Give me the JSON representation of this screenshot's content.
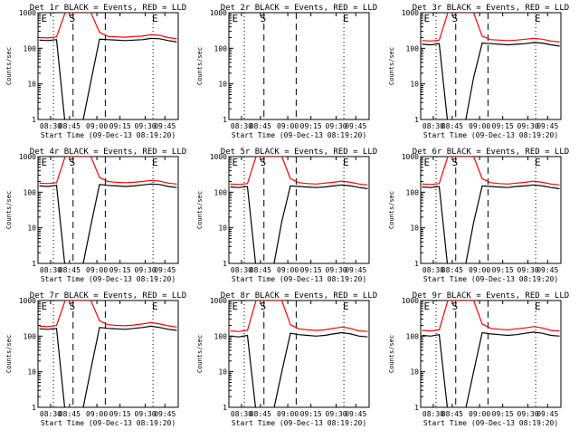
{
  "chart_data": [
    {
      "type": "line",
      "title": "Det 1r BLACK = Events, RED = LLD",
      "xlabel": "Start Time (09-Dec-13 08:19:20)",
      "ylabel": "Counts/sec",
      "yscale": "log",
      "ylim": [
        1,
        1000
      ],
      "x_tick_labels": [
        "08:30",
        "08:45",
        "09:00",
        "09:15",
        "09:30",
        "09:45"
      ],
      "y_tick_labels": [
        "1",
        "10",
        "100",
        "1000"
      ],
      "markers": [
        "E",
        "S",
        "E"
      ],
      "has_data": true,
      "series": [
        {
          "color": "#000000",
          "values": [
            170,
            165,
            175,
            0,
            0,
            0,
            12,
            180,
            175,
            170,
            165,
            170,
            175,
            190,
            185,
            165,
            150
          ]
        },
        {
          "color": "#ff0000",
          "values": [
            200,
            195,
            210,
            1000,
            1000,
            1000,
            1000,
            280,
            215,
            210,
            205,
            215,
            220,
            240,
            230,
            200,
            185
          ]
        }
      ]
    },
    {
      "type": "line",
      "title": "Det 2r BLACK = Events, RED = LLD",
      "xlabel": "Start Time (09-Dec-13 08:19:20)",
      "ylabel": "Counts/sec",
      "yscale": "log",
      "ylim": [
        1,
        1000
      ],
      "x_tick_labels": [
        "08:30",
        "08:45",
        "09:00",
        "09:15",
        "09:30",
        "09:45"
      ],
      "y_tick_labels": [
        "1",
        "10",
        "100",
        "1000"
      ],
      "markers": [
        "E",
        "S",
        "E"
      ],
      "has_data": false,
      "series": []
    },
    {
      "type": "line",
      "title": "Det 3r BLACK = Events, RED = LLD",
      "xlabel": "Start Time (09-Dec-13 08:19:20)",
      "ylabel": "Counts/sec",
      "yscale": "log",
      "ylim": [
        1,
        1000
      ],
      "x_tick_labels": [
        "08:30",
        "08:45",
        "09:00",
        "09:15",
        "09:30",
        "09:45"
      ],
      "y_tick_labels": [
        "1",
        "10",
        "100",
        "1000"
      ],
      "markers": [
        "E",
        "S",
        "E"
      ],
      "has_data": true,
      "series": [
        {
          "color": "#000000",
          "values": [
            130,
            125,
            135,
            0,
            0,
            0,
            15,
            140,
            135,
            130,
            125,
            130,
            135,
            145,
            140,
            125,
            115
          ]
        },
        {
          "color": "#ff0000",
          "values": [
            165,
            160,
            170,
            1000,
            1000,
            1000,
            1000,
            220,
            175,
            170,
            165,
            170,
            180,
            190,
            180,
            160,
            150
          ]
        }
      ]
    },
    {
      "type": "line",
      "title": "Det 4r BLACK = Events, RED = LLD",
      "xlabel": "Start Time (09-Dec-13 08:19:20)",
      "ylabel": "Counts/sec",
      "yscale": "log",
      "ylim": [
        1,
        1000
      ],
      "x_tick_labels": [
        "08:30",
        "08:45",
        "09:00",
        "09:15",
        "09:30",
        "09:45"
      ],
      "y_tick_labels": [
        "1",
        "10",
        "100",
        "1000"
      ],
      "markers": [
        "E",
        "S",
        "E"
      ],
      "has_data": true,
      "series": [
        {
          "color": "#000000",
          "values": [
            150,
            145,
            155,
            0,
            0,
            0,
            12,
            165,
            155,
            150,
            145,
            150,
            160,
            170,
            165,
            145,
            135
          ]
        },
        {
          "color": "#ff0000",
          "values": [
            180,
            175,
            185,
            1000,
            1000,
            1000,
            1000,
            260,
            200,
            190,
            185,
            190,
            200,
            215,
            205,
            180,
            170
          ]
        }
      ]
    },
    {
      "type": "line",
      "title": "Det 5r BLACK = Events, RED = LLD",
      "xlabel": "Start Time (09-Dec-13 08:19:20)",
      "ylabel": "Counts/sec",
      "yscale": "log",
      "ylim": [
        1,
        1000
      ],
      "x_tick_labels": [
        "08:30",
        "08:45",
        "09:00",
        "09:15",
        "09:30",
        "09:45"
      ],
      "y_tick_labels": [
        "1",
        "10",
        "100",
        "1000"
      ],
      "markers": [
        "E",
        "S",
        "E"
      ],
      "has_data": true,
      "series": [
        {
          "color": "#000000",
          "values": [
            140,
            135,
            145,
            0,
            0,
            0,
            15,
            150,
            145,
            140,
            135,
            140,
            150,
            160,
            150,
            135,
            125
          ]
        },
        {
          "color": "#ff0000",
          "values": [
            170,
            165,
            175,
            1000,
            1000,
            1000,
            1000,
            240,
            185,
            175,
            170,
            180,
            190,
            205,
            190,
            170,
            160
          ]
        }
      ]
    },
    {
      "type": "line",
      "title": "Det 6r BLACK = Events, RED = LLD",
      "xlabel": "Start Time (09-Dec-13 08:19:20)",
      "ylabel": "Counts/sec",
      "yscale": "log",
      "ylim": [
        1,
        1000
      ],
      "x_tick_labels": [
        "08:30",
        "08:45",
        "09:00",
        "09:15",
        "09:30",
        "09:45"
      ],
      "y_tick_labels": [
        "1",
        "10",
        "100",
        "1000"
      ],
      "markers": [
        "E",
        "S",
        "E"
      ],
      "has_data": true,
      "series": [
        {
          "color": "#000000",
          "values": [
            140,
            135,
            145,
            0,
            0,
            0,
            14,
            150,
            145,
            140,
            135,
            145,
            150,
            160,
            150,
            135,
            125
          ]
        },
        {
          "color": "#ff0000",
          "values": [
            170,
            165,
            175,
            1000,
            1000,
            1000,
            1000,
            240,
            185,
            175,
            170,
            180,
            190,
            205,
            190,
            170,
            160
          ]
        }
      ]
    },
    {
      "type": "line",
      "title": "Det 7r BLACK = Events, RED = LLD",
      "xlabel": "Start Time (09-Dec-13 08:19:20)",
      "ylabel": "Counts/sec",
      "yscale": "log",
      "ylim": [
        1,
        1000
      ],
      "x_tick_labels": [
        "08:30",
        "08:45",
        "09:00",
        "09:15",
        "09:30",
        "09:45"
      ],
      "y_tick_labels": [
        "1",
        "10",
        "100",
        "1000"
      ],
      "markers": [
        "E",
        "S",
        "E"
      ],
      "has_data": true,
      "series": [
        {
          "color": "#000000",
          "values": [
            160,
            155,
            165,
            0,
            0,
            0,
            12,
            175,
            165,
            160,
            155,
            165,
            175,
            190,
            175,
            155,
            145
          ]
        },
        {
          "color": "#ff0000",
          "values": [
            190,
            185,
            200,
            1000,
            1000,
            1000,
            1000,
            270,
            210,
            200,
            195,
            205,
            220,
            240,
            220,
            195,
            180
          ]
        }
      ]
    },
    {
      "type": "line",
      "title": "Det 8r BLACK = Events, RED = LLD",
      "xlabel": "Start Time (09-Dec-13 08:19:20)",
      "ylabel": "Counts/sec",
      "yscale": "log",
      "ylim": [
        1,
        1000
      ],
      "x_tick_labels": [
        "08:30",
        "08:45",
        "09:00",
        "09:15",
        "09:30",
        "09:45"
      ],
      "y_tick_labels": [
        "1",
        "10",
        "100",
        "1000"
      ],
      "markers": [
        "E",
        "S",
        "E"
      ],
      "has_data": true,
      "series": [
        {
          "color": "#000000",
          "values": [
            100,
            95,
            105,
            0,
            0,
            0,
            10,
            120,
            110,
            105,
            100,
            105,
            115,
            125,
            115,
            100,
            95
          ]
        },
        {
          "color": "#ff0000",
          "values": [
            140,
            135,
            145,
            1000,
            1000,
            1000,
            1000,
            210,
            160,
            150,
            145,
            150,
            165,
            180,
            165,
            140,
            135
          ]
        }
      ]
    },
    {
      "type": "line",
      "title": "Det 9r BLACK = Events, RED = LLD",
      "xlabel": "Start Time (09-Dec-13 08:19:20)",
      "ylabel": "Counts/sec",
      "yscale": "log",
      "ylim": [
        1,
        1000
      ],
      "x_tick_labels": [
        "08:30",
        "08:45",
        "09:00",
        "09:15",
        "09:30",
        "09:45"
      ],
      "y_tick_labels": [
        "1",
        "10",
        "100",
        "1000"
      ],
      "markers": [
        "E",
        "S",
        "E"
      ],
      "has_data": true,
      "series": [
        {
          "color": "#000000",
          "values": [
            105,
            100,
            110,
            0,
            0,
            0,
            10,
            125,
            115,
            110,
            105,
            110,
            120,
            130,
            120,
            105,
            100
          ]
        },
        {
          "color": "#ff0000",
          "values": [
            145,
            140,
            150,
            1000,
            1000,
            1000,
            1000,
            220,
            165,
            155,
            150,
            160,
            170,
            185,
            170,
            145,
            140
          ]
        }
      ]
    }
  ]
}
